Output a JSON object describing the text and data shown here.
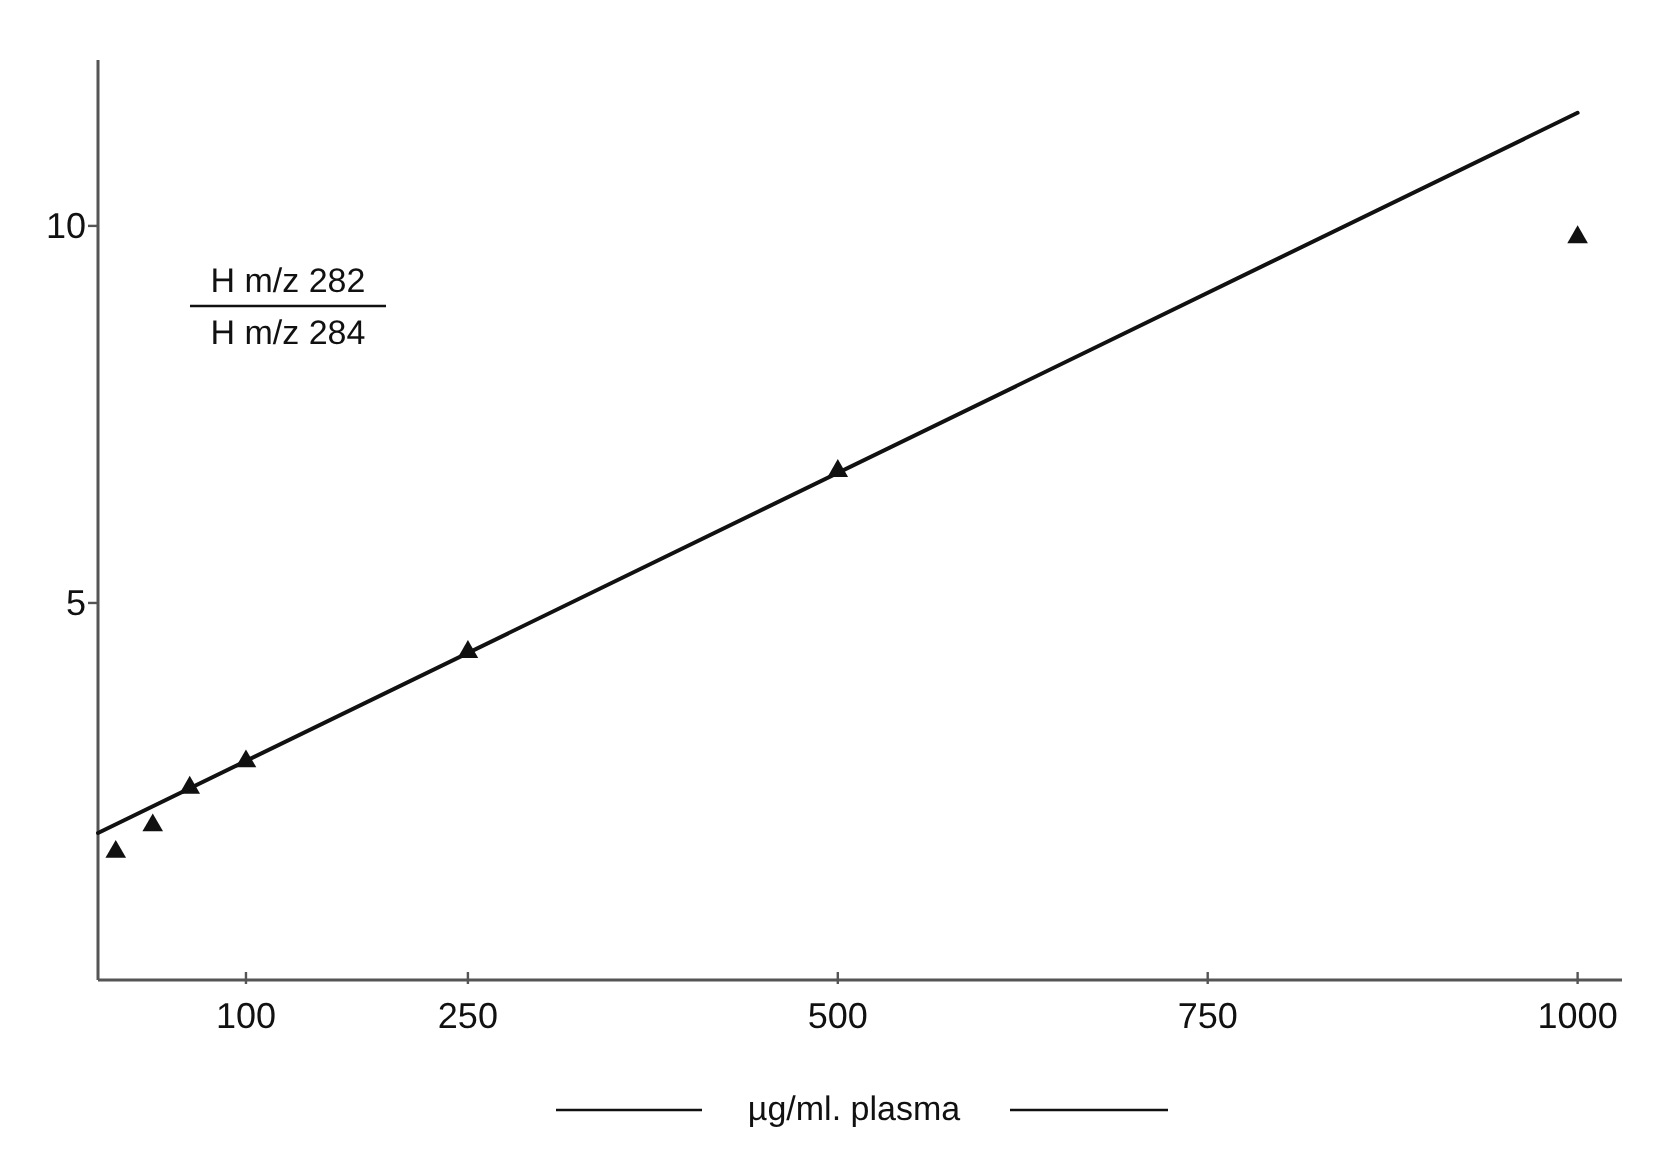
{
  "chart_data": {
    "type": "scatter",
    "xlabel": "µg/ml. plasma",
    "ylabel": "H m/z 282\nH m/z 284",
    "xlim": [
      0,
      1030
    ],
    "ylim": [
      0,
      12.2
    ],
    "xticks": [
      100,
      250,
      500,
      750,
      1000
    ],
    "yticks": [
      5,
      10
    ],
    "series": [
      {
        "color": "#111111",
        "marker": "triangle",
        "x": [
          12,
          37,
          62,
          100,
          250,
          500,
          1000
        ],
        "values": [
          1.7,
          2.05,
          2.55,
          2.9,
          4.35,
          6.75,
          9.85
        ]
      },
      {
        "type": "line",
        "color": "#111111",
        "marker": "none",
        "x": [
          0,
          1000
        ],
        "values": [
          1.95,
          11.5
        ],
        "line_style": "solid"
      }
    ]
  }
}
